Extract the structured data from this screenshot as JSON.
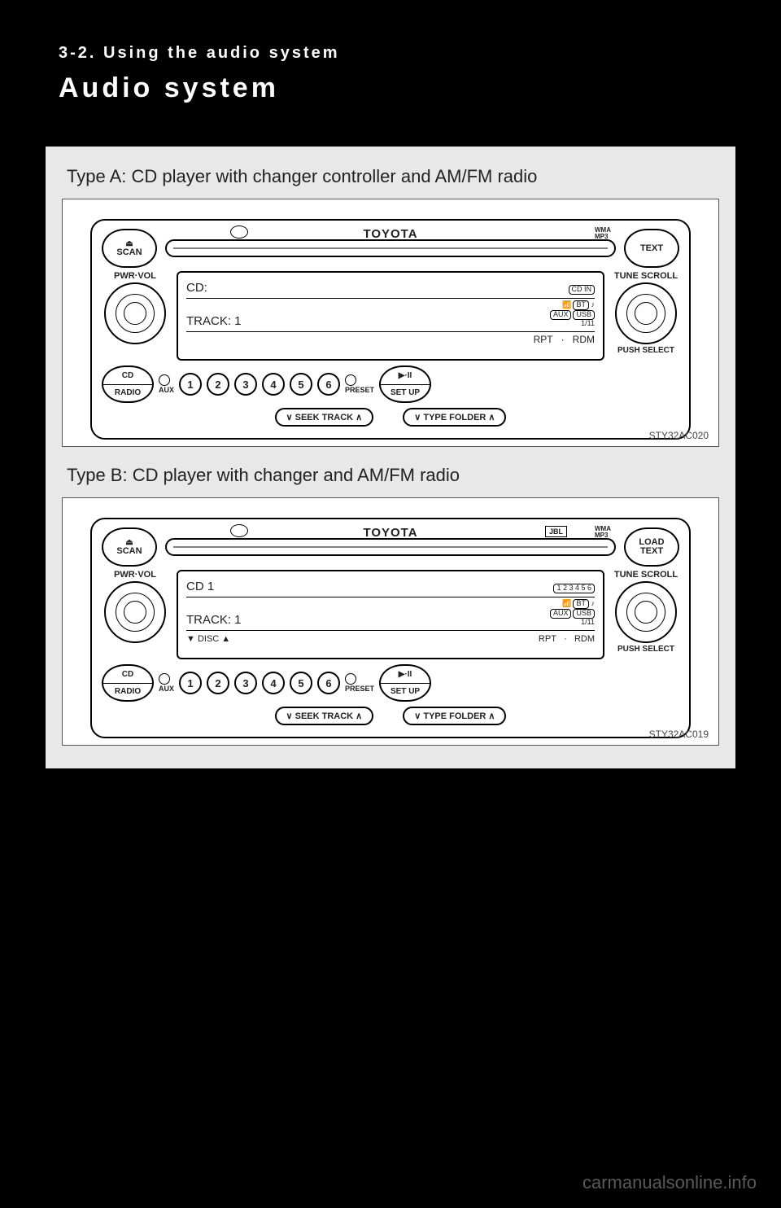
{
  "header": {
    "section": "3-2. Using the audio system",
    "title": "Audio system"
  },
  "typeA": {
    "heading": "Type A: CD player with changer controller and AM/FM radio",
    "figureId": "STY32AC020",
    "brand": "TOYOTA",
    "wma": "WMA\nMP3",
    "buttons": {
      "eject": "⏏",
      "scan": "SCAN",
      "text": "TEXT",
      "pwrVol": "PWR·VOL",
      "tuneScroll": "TUNE SCROLL",
      "pushSelect": "PUSH SELECT",
      "cd": "CD",
      "radio": "RADIO",
      "aux": "AUX",
      "preset": "PRESET",
      "playPause": "▶·II",
      "setup": "SET UP",
      "seekTrack": "∨  SEEK TRACK  ∧",
      "typeFolder": "∨  TYPE FOLDER  ∧"
    },
    "presets": [
      "1",
      "2",
      "3",
      "4",
      "5",
      "6"
    ],
    "lcd": {
      "line1": "CD:",
      "cdIn": "CD IN",
      "line2": "TRACK:  1",
      "bt": "BT",
      "aux": "AUX",
      "usb": "USB",
      "frac": "1/11",
      "rpt": "RPT",
      "dot": "·",
      "rdm": "RDM"
    }
  },
  "typeB": {
    "heading": "Type B: CD player with changer and AM/FM radio",
    "figureId": "STY32AC019",
    "brand": "TOYOTA",
    "jbl": "JBL",
    "wma": "WMA\nMP3",
    "buttons": {
      "eject": "⏏",
      "scan": "SCAN",
      "load": "LOAD",
      "text": "TEXT",
      "pwrVol": "PWR·VOL",
      "tuneScroll": "TUNE SCROLL",
      "pushSelect": "PUSH SELECT",
      "cd": "CD",
      "radio": "RADIO",
      "aux": "AUX",
      "preset": "PRESET",
      "playPause": "▶·II",
      "setup": "SET UP",
      "seekTrack": "∨  SEEK TRACK  ∧",
      "typeFolder": "∨  TYPE FOLDER  ∧"
    },
    "presets": [
      "1",
      "2",
      "3",
      "4",
      "5",
      "6"
    ],
    "lcd": {
      "line1": "CD 1",
      "slots": "1 2 3 4 5 6",
      "line2": "TRACK:  1",
      "bt": "BT",
      "aux": "AUX",
      "usb": "USB",
      "frac": "1/11",
      "disc": "▼  DISC  ▲",
      "rpt": "RPT",
      "dot": "·",
      "rdm": "RDM"
    }
  },
  "watermark": "carmanualsonline.info"
}
